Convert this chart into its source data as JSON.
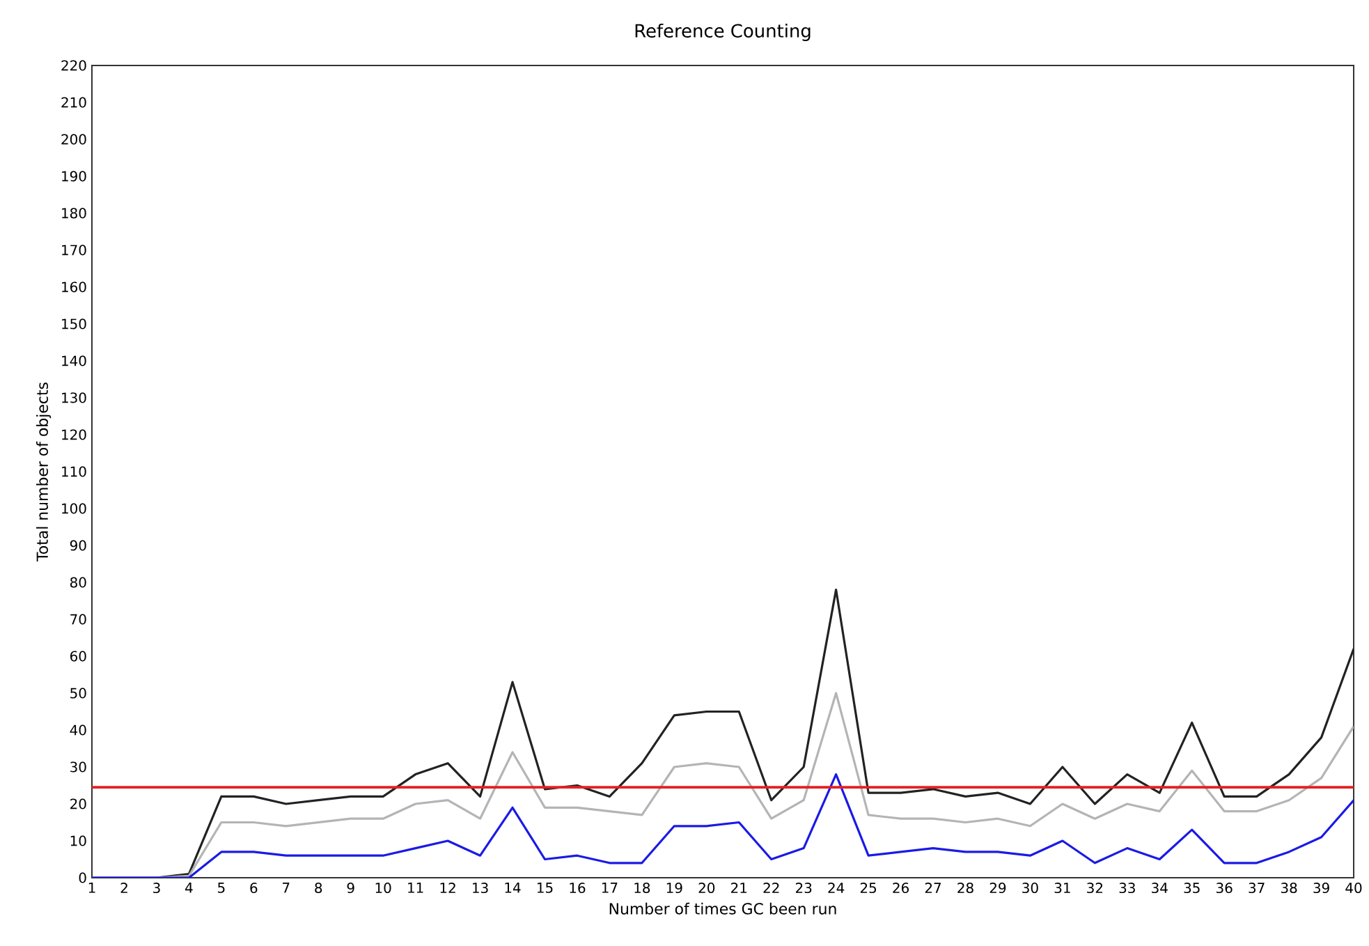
{
  "chart_data": {
    "type": "line",
    "title": "Reference Counting",
    "xlabel": "Number of times GC been run",
    "ylabel": "Total number of objects",
    "x": [
      1,
      2,
      3,
      4,
      5,
      6,
      7,
      8,
      9,
      10,
      11,
      12,
      13,
      14,
      15,
      16,
      17,
      18,
      19,
      20,
      21,
      22,
      23,
      24,
      25,
      26,
      27,
      28,
      29,
      30,
      31,
      32,
      33,
      34,
      35,
      36,
      37,
      38,
      39,
      40
    ],
    "series": [
      {
        "color": "#222222",
        "values": [
          0,
          0,
          0,
          1,
          22,
          22,
          20,
          21,
          22,
          22,
          28,
          31,
          22,
          53,
          24,
          25,
          22,
          31,
          44,
          45,
          45,
          21,
          30,
          78,
          23,
          23,
          24,
          22,
          23,
          20,
          30,
          20,
          28,
          23,
          42,
          22,
          22,
          28,
          38,
          62
        ]
      },
      {
        "color": "#b4b4b4",
        "values": [
          0,
          0,
          0,
          0.5,
          15,
          15,
          14,
          15,
          16,
          16,
          20,
          21,
          16,
          34,
          19,
          19,
          18,
          17,
          30,
          31,
          30,
          16,
          21,
          50,
          17,
          16,
          16,
          15,
          16,
          14,
          20,
          16,
          20,
          18,
          29,
          18,
          18,
          21,
          27,
          41
        ]
      },
      {
        "color": "#1a1ae6",
        "values": [
          0,
          0,
          0,
          0,
          7,
          7,
          6,
          6,
          6,
          6,
          8,
          10,
          6,
          19,
          5,
          6,
          4,
          4,
          14,
          14,
          15,
          5,
          8,
          28,
          6,
          7,
          8,
          7,
          7,
          6,
          10,
          4,
          8,
          5,
          13,
          4,
          4,
          7,
          11,
          21
        ]
      }
    ],
    "ref_lines": [
      {
        "axis": "y",
        "value": 24.5,
        "color": "#e62020"
      }
    ],
    "xlim": [
      1,
      40
    ],
    "xticks": [
      1,
      2,
      3,
      4,
      5,
      6,
      7,
      8,
      9,
      10,
      11,
      12,
      13,
      14,
      15,
      16,
      17,
      18,
      19,
      20,
      21,
      22,
      23,
      24,
      25,
      26,
      27,
      28,
      29,
      30,
      31,
      32,
      33,
      34,
      35,
      36,
      37,
      38,
      39,
      40
    ],
    "ylim": [
      0,
      220
    ],
    "yticks": [
      0,
      10,
      20,
      30,
      40,
      50,
      60,
      70,
      80,
      90,
      100,
      110,
      120,
      130,
      140,
      150,
      160,
      170,
      180,
      190,
      200,
      210,
      220
    ],
    "marker": "none",
    "line_style": "solid"
  }
}
